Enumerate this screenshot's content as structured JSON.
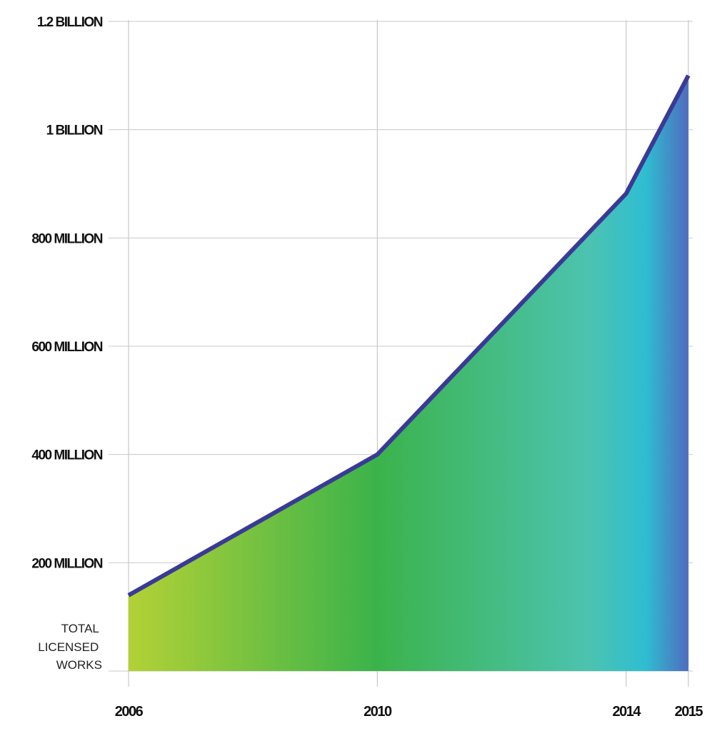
{
  "chart_data": {
    "type": "area",
    "title": "",
    "xlabel": "",
    "ylabel_lines": [
      "TOTAL",
      "LICENSED",
      "WORKS"
    ],
    "x": [
      2006,
      2010,
      2014,
      2015
    ],
    "x_tick_labels": [
      "2006",
      "2010",
      "2014",
      "2015"
    ],
    "values": [
      140000000,
      400000000,
      882000000,
      1100000000
    ],
    "ylim": [
      0,
      1200000000
    ],
    "y_ticks": [
      200000000,
      400000000,
      600000000,
      800000000,
      1000000000,
      1200000000
    ],
    "y_tick_labels": [
      "200 MILLION",
      "400 MILLION",
      "600 MILLION",
      "800 MILLION",
      "1 BILLION",
      "1.2 BILLION"
    ],
    "grid": true,
    "colors": {
      "line": "#3a3a96",
      "gradient": [
        "#b3d136",
        "#3bb34a",
        "#4cc3b0",
        "#2fbdd2",
        "#5068bd"
      ],
      "grid": "#c8c8c8"
    }
  }
}
